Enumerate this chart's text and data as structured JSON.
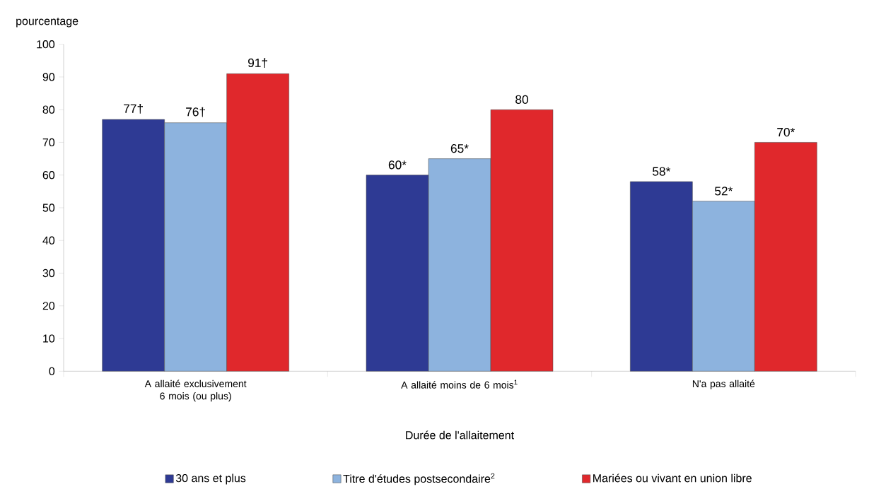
{
  "chart_data": {
    "type": "bar",
    "categories": [
      "A allaité exclusivement 6 mois (ou plus)",
      "A allaité moins de 6 mois$^{1}$",
      "N'a pas allaité"
    ],
    "series": [
      {
        "name": "30 ans et plus",
        "color": "#2e3a94",
        "values": [
          77,
          60,
          58
        ],
        "value_labels": [
          "77†",
          "60*",
          "58*"
        ]
      },
      {
        "name": "Titre d'études postsecondaire$^{2}$",
        "color": "#8db3de",
        "values": [
          76,
          65,
          52
        ],
        "value_labels": [
          "76†",
          "65*",
          "52*"
        ]
      },
      {
        "name": "Mariées ou vivant en union libre",
        "color": "#e0282c",
        "values": [
          91,
          80,
          70
        ],
        "value_labels": [
          "91†",
          "80",
          "70*"
        ]
      }
    ],
    "xlabel": "Durée de l'allaitement",
    "ylabel": "pourcentage",
    "ylim": [
      0,
      100
    ],
    "yticks": [
      0,
      10,
      20,
      30,
      40,
      50,
      60,
      70,
      80,
      90,
      100
    ],
    "grid": false,
    "legend": "bottom"
  }
}
